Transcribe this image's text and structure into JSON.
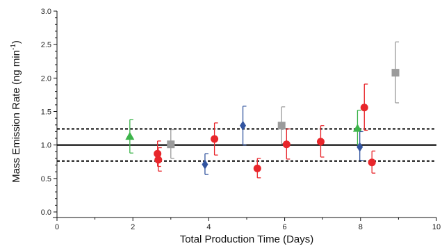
{
  "chart_data": {
    "type": "scatter",
    "xlabel": "Total Production Time (Days)",
    "ylabel": "Mass Emission Rate (ng min",
    "ylabel_exp": "-1",
    "ylabel_close": ")",
    "xlim": [
      0,
      10
    ],
    "ylim": [
      0,
      3
    ],
    "xticks": [
      0,
      2,
      4,
      6,
      8,
      10
    ],
    "yticks": [
      0.0,
      0.5,
      1.0,
      1.5,
      2.0,
      2.5,
      3.0
    ],
    "xtick_labels": [
      "0",
      "2",
      "4",
      "6",
      "8",
      "10"
    ],
    "ytick_labels": [
      "0.0",
      "0.5",
      "1.0",
      "1.5",
      "2.0",
      "2.5",
      "3.0"
    ],
    "grid": false,
    "reference_lines": [
      {
        "y": 1.0,
        "style": "solid"
      },
      {
        "y": 1.24,
        "style": "dotted"
      },
      {
        "y": 0.76,
        "style": "dotted"
      }
    ],
    "series": [
      {
        "marker": "triangle",
        "color": "#3cb44a",
        "points": [
          {
            "x": 1.92,
            "y": 1.13,
            "lo": 0.88,
            "hi": 1.38
          },
          {
            "x": 7.92,
            "y": 1.25,
            "lo": 1.0,
            "hi": 1.52
          }
        ]
      },
      {
        "marker": "square",
        "color": "#9b9b9b",
        "points": [
          {
            "x": 3.0,
            "y": 1.01,
            "lo": 0.8,
            "hi": 1.23
          },
          {
            "x": 5.92,
            "y": 1.29,
            "lo": 1.02,
            "hi": 1.57
          },
          {
            "x": 8.92,
            "y": 2.08,
            "lo": 1.63,
            "hi": 2.54
          }
        ]
      },
      {
        "marker": "diamond",
        "color": "#3355a0",
        "points": [
          {
            "x": 3.9,
            "y": 0.71,
            "lo": 0.56,
            "hi": 0.87
          },
          {
            "x": 4.9,
            "y": 1.29,
            "lo": 1.0,
            "hi": 1.58
          },
          {
            "x": 7.98,
            "y": 0.97,
            "lo": 0.77,
            "hi": 1.2
          }
        ]
      },
      {
        "marker": "circle",
        "color": "#e8262b",
        "points": [
          {
            "x": 2.65,
            "y": 0.87,
            "lo": 0.68,
            "hi": 1.06
          },
          {
            "x": 2.67,
            "y": 0.78,
            "lo": 0.61,
            "hi": 0.96
          },
          {
            "x": 4.15,
            "y": 1.09,
            "lo": 0.85,
            "hi": 1.33
          },
          {
            "x": 5.28,
            "y": 0.65,
            "lo": 0.51,
            "hi": 0.8
          },
          {
            "x": 6.05,
            "y": 1.01,
            "lo": 0.79,
            "hi": 1.24
          },
          {
            "x": 6.95,
            "y": 1.05,
            "lo": 0.82,
            "hi": 1.29
          },
          {
            "x": 8.1,
            "y": 1.56,
            "lo": 1.22,
            "hi": 1.91
          },
          {
            "x": 8.3,
            "y": 0.74,
            "lo": 0.58,
            "hi": 0.91
          }
        ]
      }
    ]
  }
}
